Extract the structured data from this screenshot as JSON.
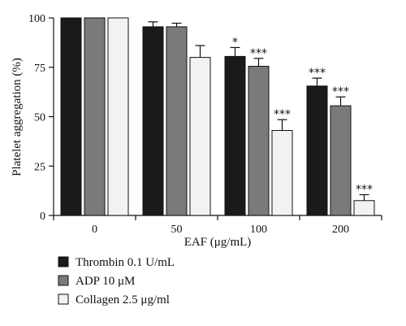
{
  "chart_data": {
    "type": "bar",
    "xlabel": "EAF (μg/mL)",
    "ylabel": "Platelet aggregation (%)",
    "ylim": [
      0,
      100
    ],
    "yticks": [
      "0",
      "25",
      "50",
      "75",
      "100"
    ],
    "categories": [
      "0",
      "50",
      "100",
      "200"
    ],
    "series": [
      {
        "name": "Thrombin 0.1 U/mL",
        "color": "#1a1a1a",
        "values": [
          100,
          95.5,
          80.5,
          65.5
        ],
        "errors": [
          0.3,
          2.5,
          4.5,
          4.0
        ],
        "significance": [
          "",
          "",
          "*",
          "***"
        ]
      },
      {
        "name": "ADP 10 μM",
        "color": "#7a7a7a",
        "values": [
          100,
          95.5,
          75.5,
          55.5
        ],
        "errors": [
          0.3,
          1.8,
          4.0,
          4.5
        ],
        "significance": [
          "",
          "",
          "***",
          "***"
        ]
      },
      {
        "name": "Collagen 2.5 μg/ml",
        "color": "#f2f2f2",
        "values": [
          100,
          80,
          43,
          7.5
        ],
        "errors": [
          0.3,
          6.0,
          5.5,
          3.0
        ],
        "significance": [
          "",
          "",
          "***",
          "***"
        ]
      }
    ],
    "grid": false,
    "legend_position": "bottom-left"
  }
}
